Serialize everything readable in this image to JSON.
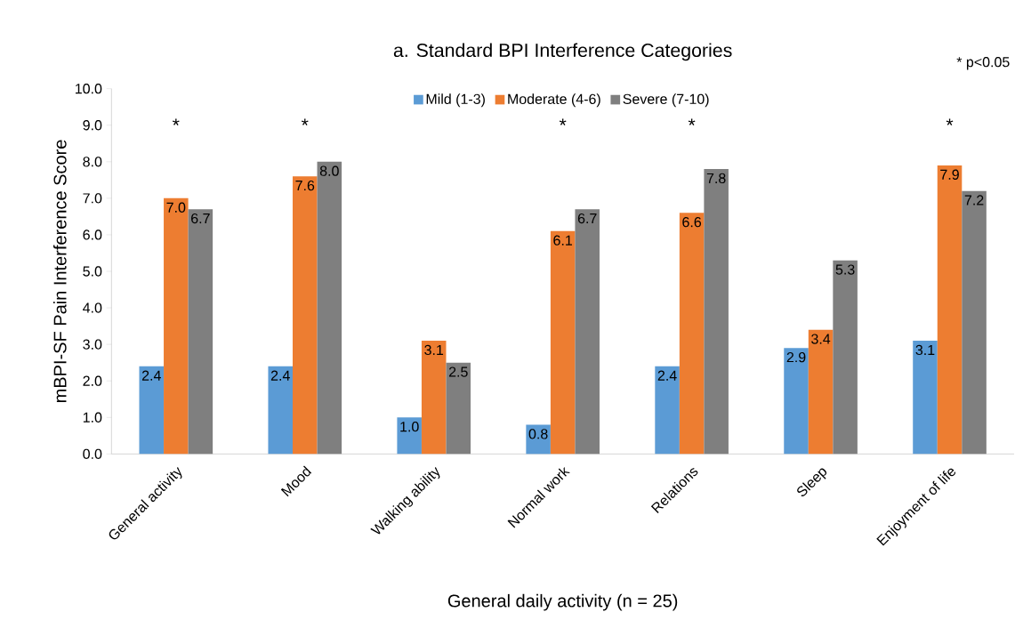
{
  "chart_data": {
    "type": "bar",
    "title": "a. Standard BPI Interference Categories",
    "xlabel": "General daily activity (n = 25)",
    "ylabel": "mBPI-SF Pain Interference Score",
    "categories": [
      "General activity",
      "Mood",
      "Walking ability",
      "Normal work",
      "Relations",
      "Sleep",
      "Enjoyment of life"
    ],
    "series": [
      {
        "name": "Mild (1-3)",
        "color": "#5b9bd5",
        "values": [
          2.4,
          2.4,
          1.0,
          0.8,
          2.4,
          2.9,
          3.1
        ],
        "value_labels": [
          "2.4",
          "2.4",
          "1.0",
          "0.8",
          "2.4",
          "2.9",
          "3.1"
        ]
      },
      {
        "name": "Moderate (4-6)",
        "color": "#ed7d31",
        "values": [
          7.0,
          7.6,
          3.1,
          6.1,
          6.6,
          3.4,
          7.9
        ],
        "value_labels": [
          "7.0",
          "7.6",
          "3.1",
          "6.1",
          "6.6",
          "3.4",
          "7.9"
        ]
      },
      {
        "name": "Severe (7-10)",
        "color": "#7f7f7f",
        "values": [
          6.7,
          8.0,
          2.5,
          6.7,
          7.8,
          5.3,
          7.2
        ],
        "value_labels": [
          "6.7",
          "8.0",
          "2.5",
          "6.7",
          "7.8",
          "5.3",
          "7.2"
        ]
      }
    ],
    "ylim": [
      0,
      10
    ],
    "yticks": [
      {
        "value": 0,
        "label": "0.0"
      },
      {
        "value": 1,
        "label": "1.0"
      },
      {
        "value": 2,
        "label": "2.0"
      },
      {
        "value": 3,
        "label": "3.0"
      },
      {
        "value": 4,
        "label": "4.0"
      },
      {
        "value": 5,
        "label": "5.0"
      },
      {
        "value": 6,
        "label": "6.0"
      },
      {
        "value": 7,
        "label": "7.0"
      },
      {
        "value": 8,
        "label": "8.0"
      },
      {
        "value": 9,
        "label": "9.0"
      },
      {
        "value": 10,
        "label": "10.0"
      }
    ],
    "legend": "top",
    "annotations": [
      "*",
      "*",
      "*",
      "*",
      "*",
      "* p<0.05"
    ]
  }
}
